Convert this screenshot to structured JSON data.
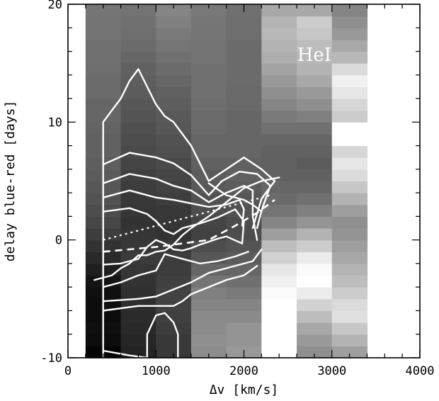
{
  "chart_data": {
    "type": "heatmap",
    "title": "",
    "panel_label": "HeI",
    "xlabel": "Δv [km/s]",
    "ylabel": "delay blue-red [days]",
    "xlim": [
      0,
      4000
    ],
    "ylim": [
      -10,
      20
    ],
    "xticks": [
      0,
      1000,
      2000,
      3000,
      4000
    ],
    "yticks": [
      -10,
      0,
      10,
      20
    ],
    "x_columns": [
      {
        "x0": 200,
        "x1": 600
      },
      {
        "x0": 600,
        "x1": 1000
      },
      {
        "x0": 1000,
        "x1": 1400
      },
      {
        "x0": 1400,
        "x1": 1800
      },
      {
        "x0": 1800,
        "x1": 2200
      },
      {
        "x0": 2200,
        "x1": 2600
      },
      {
        "x0": 2600,
        "x1": 3000
      },
      {
        "x0": 3000,
        "x1": 3400
      }
    ],
    "y_edges": [
      -10,
      -9,
      -8,
      -7,
      -6,
      -5,
      -4,
      -3,
      -2,
      -1,
      0,
      1,
      2,
      3,
      4,
      5,
      6,
      7,
      8,
      9,
      10,
      11,
      12,
      13,
      14,
      15,
      16,
      17,
      18,
      19,
      20
    ],
    "gray_levels": [
      [
        0.02,
        0.05,
        0.06,
        0.05,
        0.05,
        0.06,
        0.08,
        0.12,
        0.16,
        0.2,
        0.24,
        0.28,
        0.3,
        0.32,
        0.34,
        0.36,
        0.37,
        0.38,
        0.38,
        0.39,
        0.4,
        0.4,
        0.42,
        0.42,
        0.43,
        0.44,
        0.44,
        0.45,
        0.45,
        0.46
      ],
      [
        0.14,
        0.15,
        0.16,
        0.17,
        0.18,
        0.19,
        0.2,
        0.21,
        0.23,
        0.22,
        0.21,
        0.2,
        0.21,
        0.22,
        0.24,
        0.25,
        0.27,
        0.29,
        0.3,
        0.31,
        0.33,
        0.34,
        0.36,
        0.37,
        0.38,
        0.4,
        0.42,
        0.43,
        0.44,
        0.45
      ],
      [
        0.22,
        0.22,
        0.24,
        0.25,
        0.26,
        0.26,
        0.25,
        0.24,
        0.24,
        0.22,
        0.2,
        0.21,
        0.22,
        0.24,
        0.26,
        0.27,
        0.29,
        0.31,
        0.32,
        0.34,
        0.35,
        0.37,
        0.38,
        0.4,
        0.42,
        0.44,
        0.46,
        0.48,
        0.5,
        0.52
      ],
      [
        0.55,
        0.56,
        0.55,
        0.54,
        0.52,
        0.5,
        0.46,
        0.4,
        0.34,
        0.3,
        0.26,
        0.27,
        0.3,
        0.32,
        0.35,
        0.36,
        0.38,
        0.4,
        0.4,
        0.42,
        0.42,
        0.43,
        0.44,
        0.44,
        0.44,
        0.45,
        0.45,
        0.46,
        0.46,
        0.47
      ],
      [
        0.6,
        0.58,
        0.58,
        0.54,
        0.52,
        0.48,
        0.44,
        0.4,
        0.36,
        0.33,
        0.3,
        0.3,
        0.32,
        0.34,
        0.36,
        0.38,
        0.38,
        0.4,
        0.4,
        0.4,
        0.4,
        0.41,
        0.41,
        0.42,
        0.42,
        0.42,
        0.42,
        0.43,
        0.43,
        0.44
      ],
      [
        1.0,
        1.0,
        1.0,
        1.0,
        1.0,
        0.98,
        0.94,
        0.9,
        0.82,
        0.74,
        0.62,
        0.52,
        0.46,
        0.42,
        0.4,
        0.38,
        0.38,
        0.38,
        0.4,
        0.44,
        0.48,
        0.52,
        0.56,
        0.6,
        0.64,
        0.68,
        0.7,
        0.72,
        0.7,
        0.66
      ],
      [
        0.56,
        0.6,
        0.66,
        0.74,
        0.82,
        0.92,
        1.0,
        0.98,
        0.92,
        0.8,
        0.7,
        0.58,
        0.5,
        0.44,
        0.4,
        0.38,
        0.36,
        0.38,
        0.4,
        0.44,
        0.5,
        0.56,
        0.6,
        0.66,
        0.7,
        0.72,
        0.74,
        0.78,
        0.8,
        0.66
      ],
      [
        0.62,
        0.7,
        0.78,
        0.88,
        0.86,
        0.8,
        0.74,
        0.7,
        0.66,
        0.62,
        0.58,
        0.56,
        0.62,
        0.7,
        0.78,
        0.86,
        0.9,
        0.84,
        1.0,
        1.0,
        0.8,
        0.84,
        0.9,
        0.94,
        0.86,
        0.72,
        0.66,
        0.6,
        0.56,
        0.52
      ]
    ],
    "contour_lines": [
      [
        [
          400,
          -10
        ],
        [
          400,
          0
        ],
        [
          400,
          5
        ],
        [
          400,
          10
        ],
        [
          500,
          11
        ],
        [
          600,
          12
        ],
        [
          700,
          13.5
        ],
        [
          800,
          14.5
        ],
        [
          900,
          13
        ],
        [
          1000,
          11.5
        ],
        [
          1100,
          10.5
        ],
        [
          1200,
          10
        ],
        [
          1300,
          9
        ],
        [
          1400,
          8
        ],
        [
          1600,
          5
        ],
        [
          1800,
          6
        ],
        [
          2000,
          7
        ],
        [
          2200,
          6
        ],
        [
          2350,
          5
        ],
        [
          2200,
          3.5
        ],
        [
          2100,
          1
        ]
      ],
      [
        [
          400,
          6.4
        ],
        [
          700,
          7.4
        ],
        [
          1000,
          7
        ],
        [
          1200,
          6.5
        ],
        [
          1400,
          5.5
        ],
        [
          1600,
          3.8
        ],
        [
          1750,
          5
        ],
        [
          1950,
          5.8
        ],
        [
          2150,
          5.6
        ],
        [
          2300,
          4.6
        ],
        [
          2200,
          2.5
        ],
        [
          2150,
          1
        ]
      ],
      [
        [
          400,
          4.8
        ],
        [
          700,
          5.6
        ],
        [
          1000,
          5.2
        ],
        [
          1200,
          4.6
        ],
        [
          1400,
          4.2
        ],
        [
          1600,
          3.2
        ],
        [
          1800,
          4
        ],
        [
          2000,
          4.6
        ],
        [
          2100,
          4.2
        ],
        [
          2100,
          2
        ],
        [
          2150,
          0
        ]
      ],
      [
        [
          400,
          3.6
        ],
        [
          700,
          4.2
        ],
        [
          1000,
          3.6
        ],
        [
          1200,
          3.4
        ],
        [
          1400,
          3.1
        ],
        [
          1600,
          2.8
        ],
        [
          1800,
          3
        ],
        [
          1950,
          3.4
        ],
        [
          2000,
          2.6
        ],
        [
          1980,
          1.2
        ]
      ],
      [
        [
          400,
          2.4
        ],
        [
          700,
          2.7
        ],
        [
          900,
          2.2
        ],
        [
          1000,
          1.6
        ],
        [
          1100,
          0.8
        ],
        [
          1200,
          0.5
        ],
        [
          1300,
          1
        ],
        [
          1500,
          1.4
        ],
        [
          1700,
          1.9
        ],
        [
          1900,
          2.6
        ],
        [
          2000,
          1.6
        ],
        [
          1980,
          -0.3
        ],
        [
          1800,
          0.3
        ],
        [
          1700,
          0.1
        ],
        [
          1500,
          -0.4
        ],
        [
          1400,
          -0.7
        ],
        [
          1300,
          -0.9
        ],
        [
          1200,
          -0.8
        ],
        [
          1100,
          -0.3
        ],
        [
          1000,
          0
        ],
        [
          900,
          -0.6
        ],
        [
          800,
          -1.6
        ],
        [
          600,
          -2
        ],
        [
          400,
          -2.1
        ]
      ],
      [
        [
          400,
          -4
        ],
        [
          600,
          -3.6
        ],
        [
          800,
          -3
        ],
        [
          1000,
          -2.6
        ],
        [
          1100,
          -1.2
        ],
        [
          1300,
          -1.6
        ],
        [
          1500,
          -2
        ],
        [
          1700,
          -1.8
        ],
        [
          1900,
          -1.4
        ],
        [
          2050,
          -1
        ]
      ],
      [
        [
          400,
          -5.2
        ],
        [
          800,
          -5
        ],
        [
          1000,
          -4.8
        ],
        [
          1200,
          -4.2
        ],
        [
          1400,
          -3.6
        ],
        [
          1600,
          -2.8
        ],
        [
          1800,
          -2.4
        ],
        [
          2100,
          -1.8
        ],
        [
          2200,
          -0.8
        ]
      ],
      [
        [
          400,
          -6
        ],
        [
          800,
          -5.6
        ],
        [
          1000,
          -5.6
        ],
        [
          1200,
          -5.6
        ],
        [
          1300,
          -5.2
        ],
        [
          1400,
          -4.6
        ],
        [
          1600,
          -4
        ],
        [
          1800,
          -3.4
        ],
        [
          2000,
          -3
        ],
        [
          2150,
          -2.2
        ]
      ],
      [
        [
          400,
          -9.4
        ],
        [
          700,
          -9.8
        ],
        [
          900,
          -10
        ]
      ],
      [
        [
          900,
          -10
        ],
        [
          900,
          -8
        ],
        [
          1000,
          -6.4
        ],
        [
          1100,
          -6.2
        ],
        [
          1200,
          -7
        ],
        [
          1250,
          -8
        ],
        [
          1250,
          -10
        ]
      ],
      [
        [
          1600,
          4.8
        ],
        [
          1800,
          3.8
        ],
        [
          2000,
          3.4
        ],
        [
          2100,
          3
        ],
        [
          2200,
          2.4
        ]
      ],
      [
        [
          2400,
          5.3
        ],
        [
          2200,
          5
        ],
        [
          2000,
          4.4
        ],
        [
          1800,
          3.2
        ],
        [
          1600,
          2
        ],
        [
          1400,
          1
        ],
        [
          1300,
          0.4
        ],
        [
          1200,
          -0.4
        ],
        [
          1100,
          -0.9
        ],
        [
          1000,
          -1
        ],
        [
          900,
          -1.3
        ],
        [
          800,
          -1.3
        ],
        [
          700,
          -2
        ],
        [
          600,
          -2.4
        ],
        [
          500,
          -3
        ],
        [
          400,
          -3.2
        ],
        [
          300,
          -3.4
        ]
      ]
    ],
    "dotted_lines": [
      [
        [
          400,
          0
        ],
        [
          2300,
          3.8
        ]
      ]
    ],
    "dashed_lines": [
      [
        [
          400,
          -1
        ],
        [
          1000,
          -0.6
        ],
        [
          1600,
          0
        ],
        [
          1900,
          1.2
        ],
        [
          2150,
          2.3
        ],
        [
          2350,
          3.4
        ]
      ]
    ]
  }
}
